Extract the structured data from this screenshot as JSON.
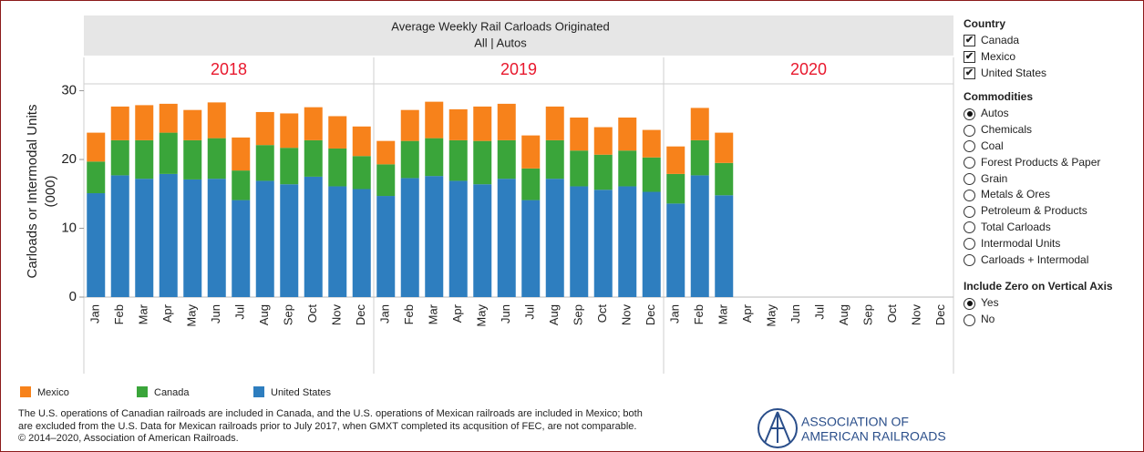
{
  "chart_data": {
    "type": "stacked_bar",
    "title": "Average Weekly Rail Carloads Originated",
    "subtitle": "All | Autos",
    "y_label": [
      "Carloads or Intermodal Units",
      "(000)"
    ],
    "panels": [
      "2018",
      "2019",
      "2020"
    ],
    "categories": [
      "Jan",
      "Feb",
      "Mar",
      "Apr",
      "May",
      "Jun",
      "Jul",
      "Aug",
      "Sep",
      "Oct",
      "Nov",
      "Dec",
      "Jan",
      "Feb",
      "Mar",
      "Apr",
      "May",
      "Jun",
      "Jul",
      "Aug",
      "Sep",
      "Oct",
      "Nov",
      "Dec",
      "Jan",
      "Feb",
      "Mar",
      "Apr",
      "May",
      "Jun",
      "Jul",
      "Aug",
      "Sep",
      "Oct",
      "Nov",
      "Dec"
    ],
    "series": [
      {
        "name": "Mexico",
        "color": "#f7821b",
        "values": [
          4.2,
          4.9,
          5.1,
          4.2,
          4.4,
          5.2,
          4.8,
          4.8,
          5.0,
          4.8,
          4.7,
          4.3,
          3.4,
          4.5,
          5.3,
          4.5,
          5.0,
          5.3,
          4.8,
          4.9,
          4.8,
          4.0,
          4.8,
          4.0,
          4.0,
          4.7,
          4.4,
          null,
          null,
          null,
          null,
          null,
          null,
          null,
          null,
          null
        ]
      },
      {
        "name": "Canada",
        "color": "#3aa53a",
        "values": [
          4.6,
          5.1,
          5.6,
          6.0,
          5.7,
          5.9,
          4.3,
          5.2,
          5.3,
          5.3,
          5.5,
          4.8,
          4.6,
          5.4,
          5.5,
          5.9,
          6.3,
          5.6,
          4.6,
          5.6,
          5.2,
          5.1,
          5.2,
          5.0,
          4.3,
          5.1,
          4.7,
          null,
          null,
          null,
          null,
          null,
          null,
          null,
          null,
          null
        ]
      },
      {
        "name": "United States",
        "color": "#2e7ebf",
        "values": [
          15.1,
          17.7,
          17.2,
          17.9,
          17.1,
          17.2,
          14.1,
          16.9,
          16.4,
          17.5,
          16.1,
          15.7,
          14.7,
          17.3,
          17.6,
          16.9,
          16.4,
          17.2,
          14.1,
          17.2,
          16.1,
          15.6,
          16.1,
          15.3,
          13.6,
          17.7,
          14.8,
          null,
          null,
          null,
          null,
          null,
          null,
          null,
          null,
          null
        ]
      }
    ],
    "ylim": [
      0,
      31
    ],
    "yticks": [
      0,
      10,
      20,
      30
    ]
  },
  "filters": {
    "country": {
      "title": "Country",
      "options": [
        "Canada",
        "Mexico",
        "United States"
      ],
      "checked": [
        true,
        true,
        true
      ]
    },
    "commodities": {
      "title": "Commodities",
      "options": [
        "Autos",
        "Chemicals",
        "Coal",
        "Forest Products & Paper",
        "Grain",
        "Metals & Ores",
        "Petroleum & Products",
        "Total Carloads",
        "Intermodal Units",
        "Carloads + Intermodal"
      ],
      "selected_index": 0
    },
    "zero": {
      "title": "Include Zero on Vertical Axis",
      "options": [
        "Yes",
        "No"
      ],
      "selected_index": 0
    }
  },
  "footnote": [
    "The U.S. operations of Canadian railroads are included in Canada, and the U.S. operations of Mexican railroads are included in Mexico; both",
    "are excluded from the U.S. Data for Mexican railroads prior to July 2017, when GMXT completed its acqusition of FEC, are not comparable."
  ],
  "copyright": "© 2014–2020, Association of American Railroads.",
  "logo": [
    "ASSOCIATION OF",
    "AMERICAN RAILROADS"
  ]
}
